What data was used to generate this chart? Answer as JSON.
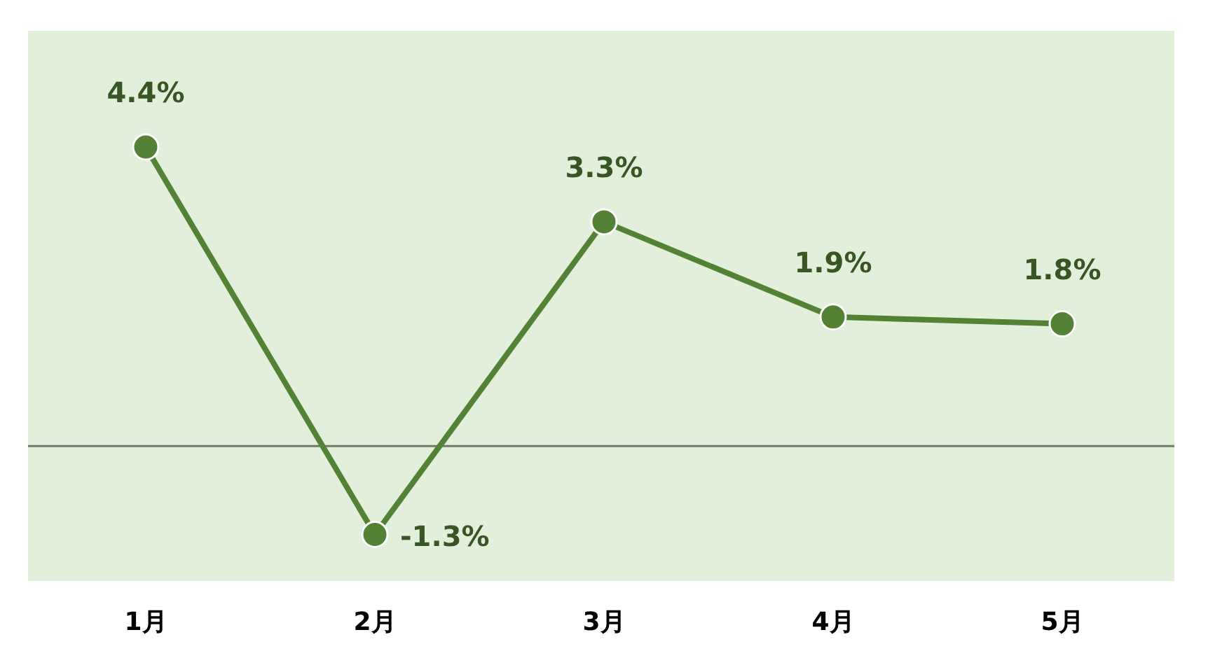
{
  "chart_data": {
    "type": "line",
    "categories": [
      "1月",
      "2月",
      "3月",
      "4月",
      "5月"
    ],
    "series": [
      {
        "color": "#548235",
        "values": [
          4.4,
          -1.3,
          3.3,
          1.9,
          1.8
        ],
        "value_labels": [
          "4.4%",
          "-1.3%",
          "3.3%",
          "1.9%",
          "1.8%"
        ]
      }
    ],
    "marker": "circle",
    "line_style": "solid",
    "grid": false,
    "legend": false
  }
}
